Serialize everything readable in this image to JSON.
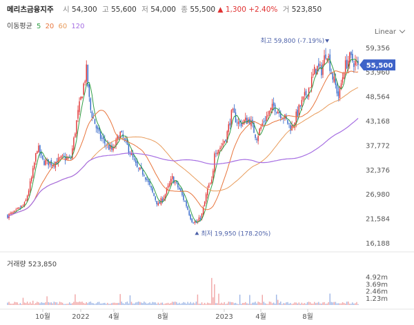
{
  "header": {
    "name": "메리츠금융지주",
    "open_label": "시",
    "open": "54,300",
    "high_label": "고",
    "high": "55,600",
    "low_label": "저",
    "low": "54,000",
    "close_label": "종",
    "close": "55,500",
    "change": "▲ 1,300",
    "change_pct": "+2.40%",
    "volume_label": "거",
    "volume": "523,850"
  },
  "ma_legend": {
    "label": "이동평균",
    "items": [
      {
        "period": "5",
        "color": "#2e9e44"
      },
      {
        "period": "20",
        "color": "#e8743b"
      },
      {
        "period": "60",
        "color": "#e89b5a"
      },
      {
        "period": "120",
        "color": "#a56de2"
      }
    ]
  },
  "scale_mode": "Linear",
  "colors": {
    "up": "#e03131",
    "down": "#2f64c9",
    "annotation": "#4a5fa8",
    "ma5": "#2e9e44",
    "ma20": "#e8743b",
    "ma60": "#e89b5a",
    "ma120": "#a56de2"
  },
  "chart_data": {
    "type": "line",
    "subtype": "candlestick",
    "x_tick_labels": [
      "10월",
      "2022",
      "4월",
      "8월",
      "2023",
      "4월",
      "8월"
    ],
    "y_tick_labels": [
      "59,356",
      "53,960",
      "48,564",
      "43,168",
      "37,772",
      "32,376",
      "26,980",
      "21,584",
      "16,188"
    ],
    "ylim": [
      16188,
      61000
    ],
    "current_price_label": "55,500",
    "current_price": 55500,
    "annotations": {
      "high": {
        "label": "최고 59,800 (-7.19%)",
        "value": 59800
      },
      "low": {
        "label": "최저 19,950 (178.20%)",
        "value": 19950
      }
    },
    "price_profile": [
      [
        0,
        22200
      ],
      [
        0.02,
        22800
      ],
      [
        0.05,
        24800
      ],
      [
        0.07,
        31000
      ],
      [
        0.085,
        37500
      ],
      [
        0.1,
        34200
      ],
      [
        0.13,
        33800
      ],
      [
        0.16,
        35000
      ],
      [
        0.18,
        34600
      ],
      [
        0.2,
        44500
      ],
      [
        0.225,
        54300
      ],
      [
        0.235,
        46000
      ],
      [
        0.26,
        40000
      ],
      [
        0.28,
        38000
      ],
      [
        0.3,
        36500
      ],
      [
        0.32,
        40500
      ],
      [
        0.345,
        37000
      ],
      [
        0.37,
        32500
      ],
      [
        0.39,
        31500
      ],
      [
        0.41,
        27800
      ],
      [
        0.43,
        24500
      ],
      [
        0.45,
        27000
      ],
      [
        0.47,
        30500
      ],
      [
        0.49,
        28000
      ],
      [
        0.51,
        24500
      ],
      [
        0.525,
        21200
      ],
      [
        0.54,
        20500
      ],
      [
        0.555,
        22500
      ],
      [
        0.57,
        28000
      ],
      [
        0.585,
        30000
      ],
      [
        0.59,
        36500
      ],
      [
        0.61,
        37500
      ],
      [
        0.625,
        40000
      ],
      [
        0.64,
        45000
      ],
      [
        0.66,
        42500
      ],
      [
        0.69,
        43500
      ],
      [
        0.71,
        39500
      ],
      [
        0.73,
        43000
      ],
      [
        0.76,
        46500
      ],
      [
        0.79,
        43800
      ],
      [
        0.81,
        41500
      ],
      [
        0.83,
        45500
      ],
      [
        0.86,
        50500
      ],
      [
        0.88,
        55000
      ],
      [
        0.895,
        54200
      ],
      [
        0.91,
        59000
      ],
      [
        0.925,
        53500
      ],
      [
        0.945,
        48500
      ],
      [
        0.96,
        54800
      ],
      [
        0.975,
        57000
      ],
      [
        1,
        55500
      ]
    ],
    "volume_panel": {
      "title": "거래량 523,850",
      "y_tick_labels": [
        "4.92m",
        "3.69m",
        "2.46m",
        "1.23m"
      ],
      "ylim": [
        0,
        6000000
      ]
    }
  }
}
